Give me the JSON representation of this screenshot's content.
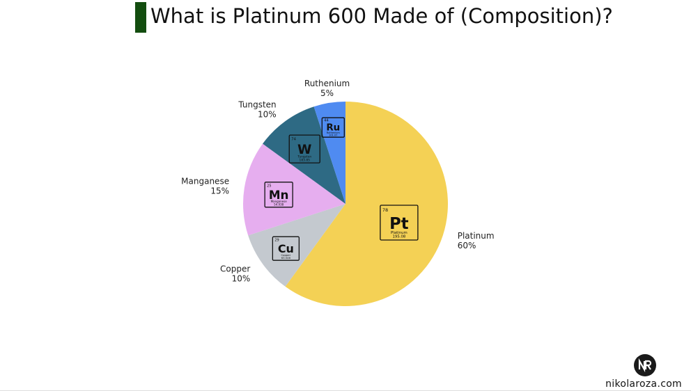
{
  "title": "What is Platinum 600 Made of (Composition)?",
  "brand": {
    "site": "nikolaroza.com",
    "logo_icon": "nr-monogram-icon"
  },
  "chart_data": {
    "type": "pie",
    "start": "top",
    "direction": "clockwise",
    "slices": [
      {
        "label": "Platinum",
        "pct_label": "60%",
        "value": 60,
        "color": "#f4d155",
        "element": {
          "number": "78",
          "symbol": "Pt",
          "name": "Platinum",
          "mass": "195.08"
        }
      },
      {
        "label": "Copper",
        "pct_label": "10%",
        "value": 10,
        "color": "#c4c9cf",
        "element": {
          "number": "29",
          "symbol": "Cu",
          "name": "Copper",
          "mass": "63.546"
        }
      },
      {
        "label": "Manganese",
        "pct_label": "15%",
        "value": 15,
        "color": "#e6aeef",
        "element": {
          "number": "25",
          "symbol": "Mn",
          "name": "Manganese",
          "mass": "54.938"
        }
      },
      {
        "label": "Tungsten",
        "pct_label": "10%",
        "value": 10,
        "color": "#2e6a84",
        "element": {
          "number": "74",
          "symbol": "W",
          "name": "Tungsten",
          "mass": "183.85"
        }
      },
      {
        "label": "Ruthenium",
        "pct_label": "5%",
        "value": 5,
        "color": "#4f8bf1",
        "element": {
          "number": "44",
          "symbol": "Ru",
          "name": "Ruthenium",
          "mass": "101.07"
        }
      }
    ]
  }
}
